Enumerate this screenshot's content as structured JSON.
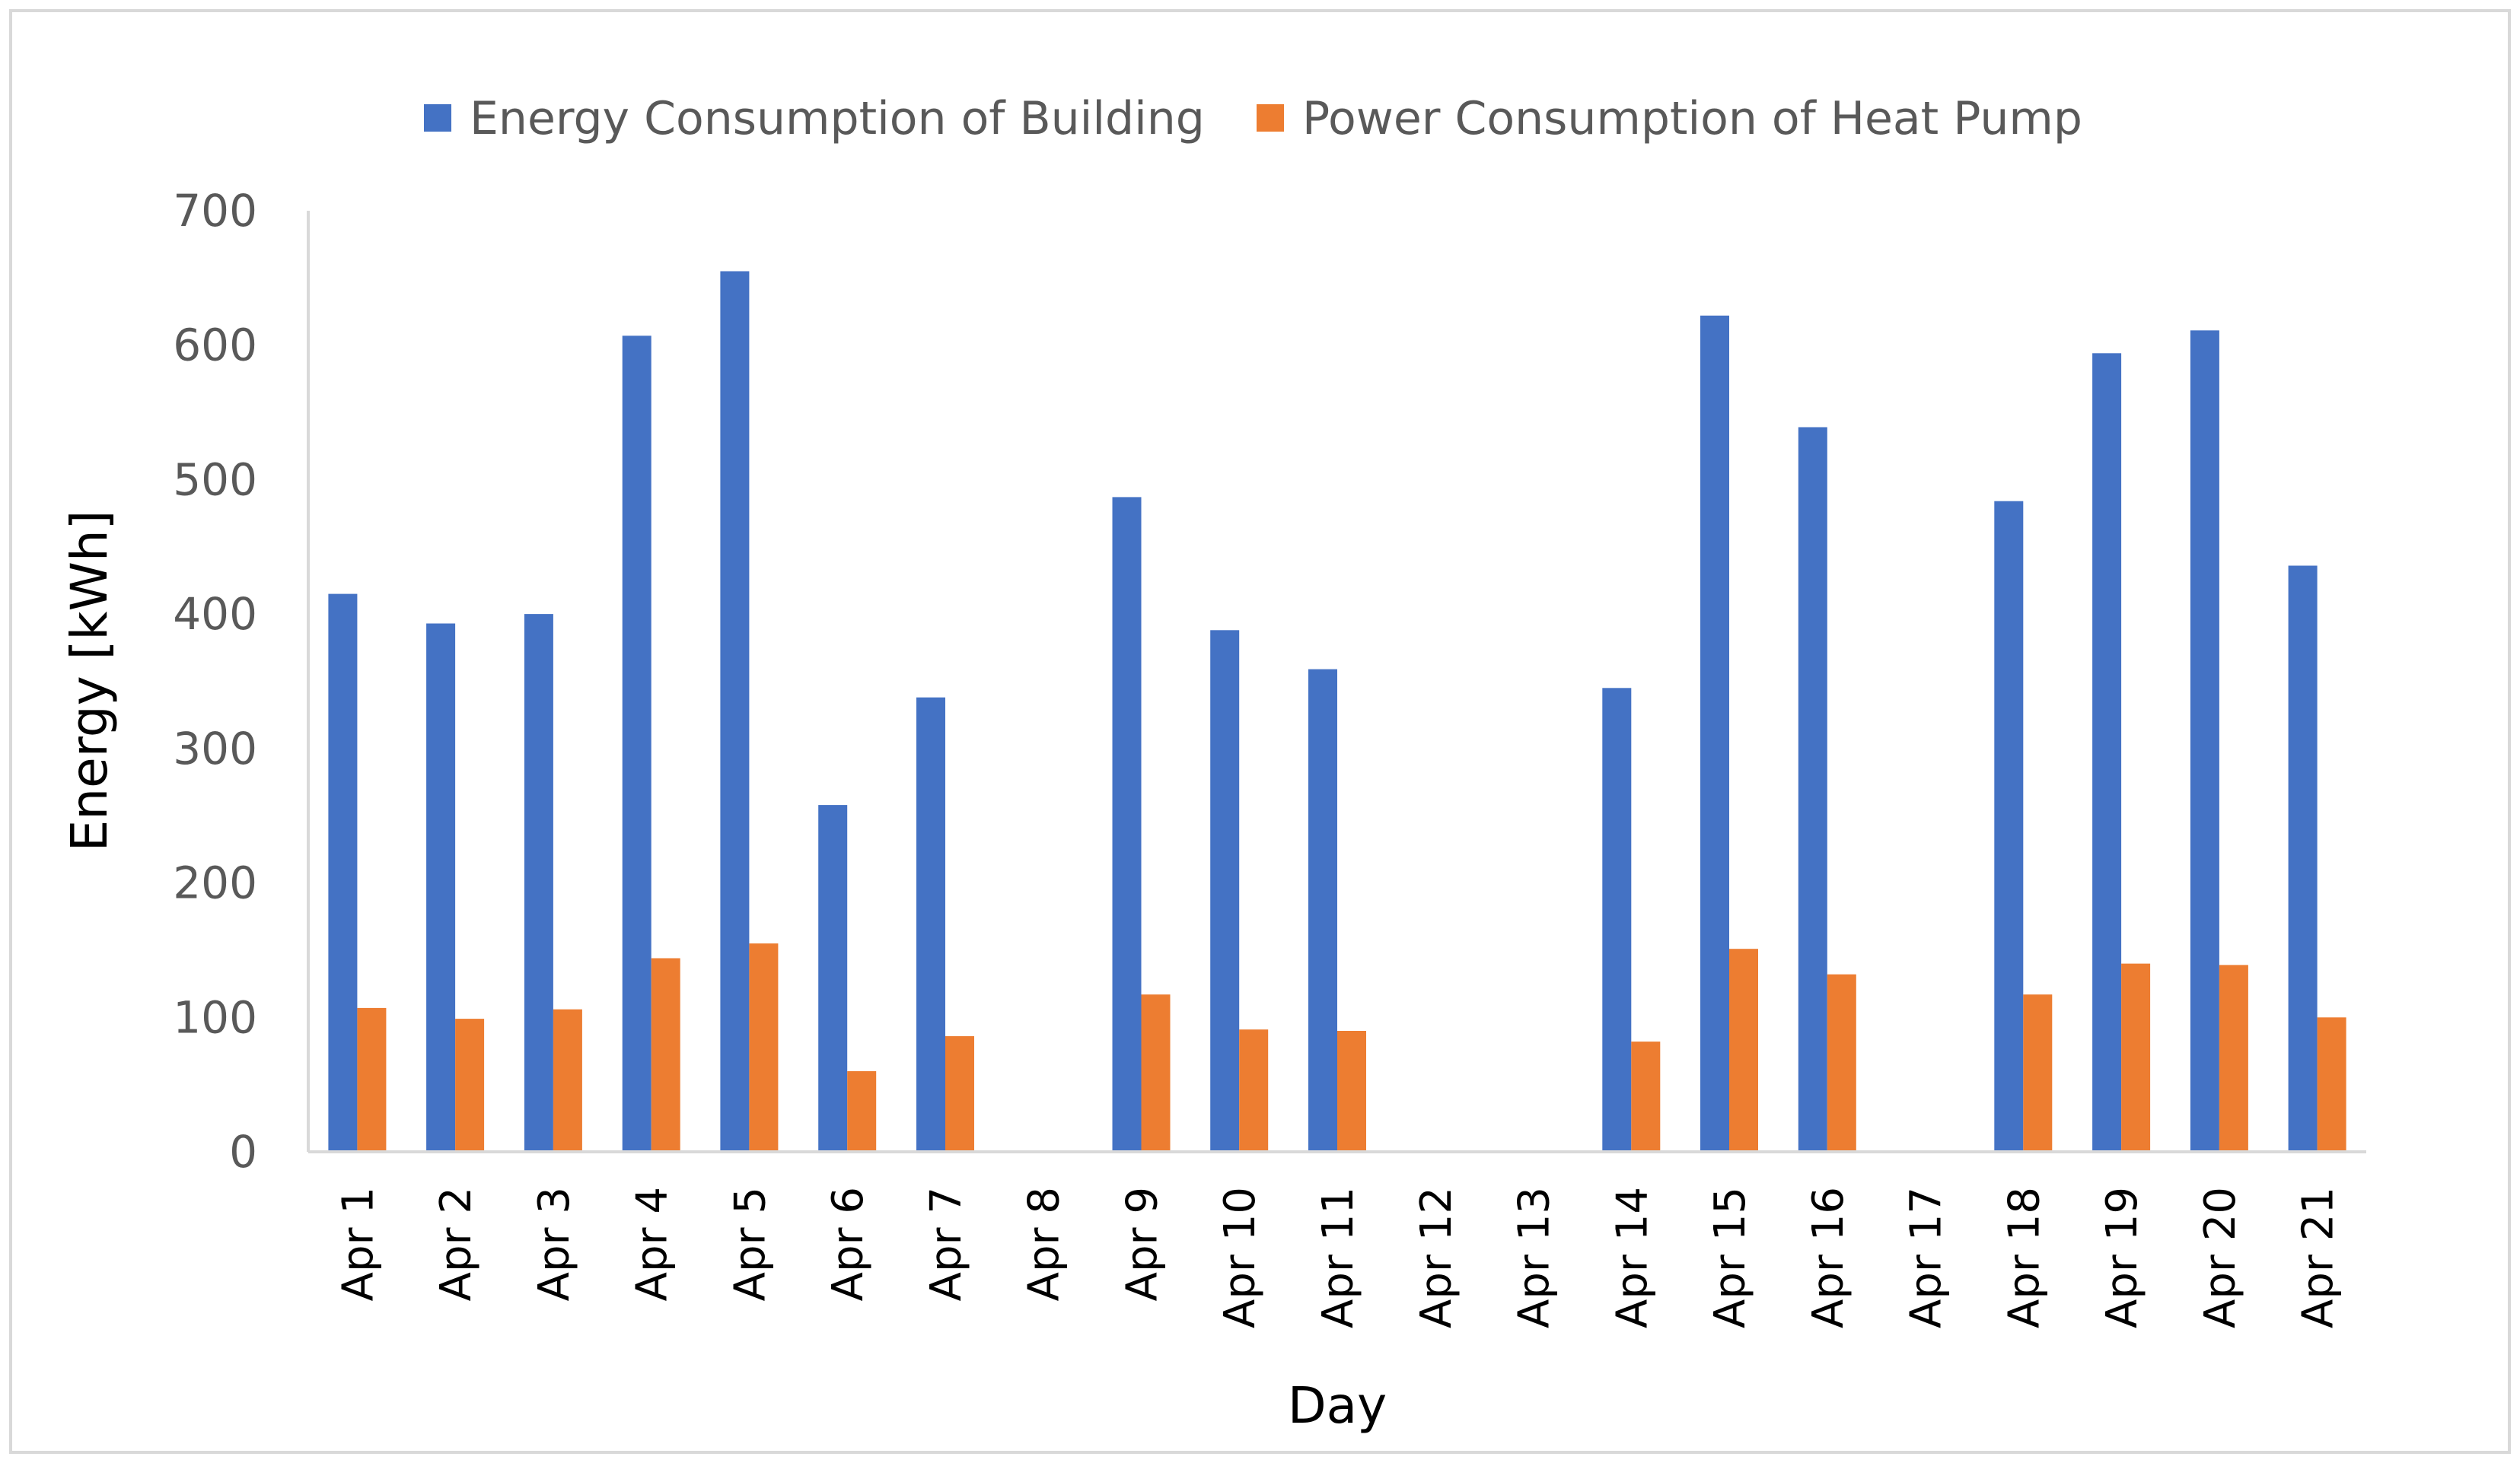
{
  "chart_data": {
    "type": "bar",
    "title": "",
    "xlabel": "Day",
    "ylabel": "Energy [kWh]",
    "ylim": [
      0,
      700
    ],
    "yticks": [
      0,
      100,
      200,
      300,
      400,
      500,
      600,
      700
    ],
    "grid": false,
    "legend_position": "top-center",
    "categories": [
      "Apr 1",
      "Apr 2",
      "Apr 3",
      "Apr 4",
      "Apr 5",
      "Apr 6",
      "Apr 7",
      "Apr 8",
      "Apr 9",
      "Apr 10",
      "Apr 11",
      "Apr 12",
      "Apr 13",
      "Apr 14",
      "Apr 15",
      "Apr 16",
      "Apr 17",
      "Apr 18",
      "Apr 19",
      "Apr 20",
      "Apr 21"
    ],
    "series": [
      {
        "name": "Energy Consumption of Building",
        "color": "#4472C4",
        "values": [
          415,
          393,
          400,
          607,
          655,
          258,
          338,
          0,
          487,
          388,
          359,
          0,
          0,
          345,
          622,
          539,
          0,
          484,
          594,
          611,
          436
        ]
      },
      {
        "name": "Power Consumption of Heat Pump",
        "color": "#ED7D31",
        "values": [
          107,
          99,
          106,
          144,
          155,
          60,
          86,
          0,
          117,
          91,
          90,
          0,
          0,
          82,
          151,
          132,
          0,
          117,
          140,
          139,
          100
        ]
      }
    ]
  }
}
